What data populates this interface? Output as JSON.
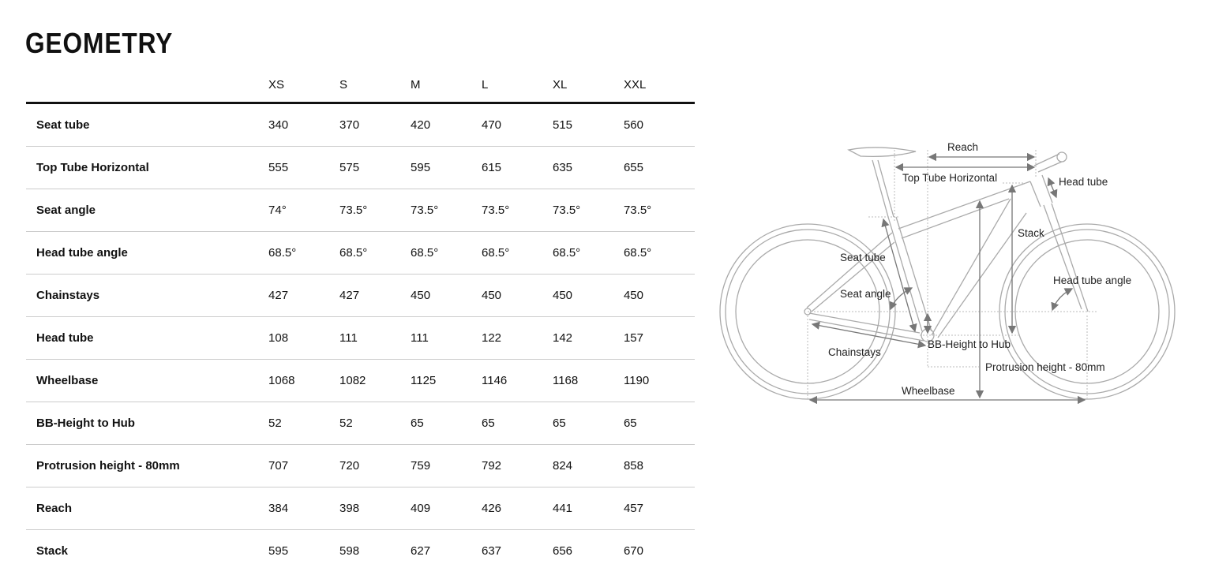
{
  "title": "GEOMETRY",
  "sizes": [
    "XS",
    "S",
    "M",
    "L",
    "XL",
    "XXL"
  ],
  "rows": [
    {
      "label": "Seat tube",
      "values": [
        "340",
        "370",
        "420",
        "470",
        "515",
        "560"
      ]
    },
    {
      "label": "Top Tube Horizontal",
      "values": [
        "555",
        "575",
        "595",
        "615",
        "635",
        "655"
      ]
    },
    {
      "label": "Seat angle",
      "values": [
        "74°",
        "73.5°",
        "73.5°",
        "73.5°",
        "73.5°",
        "73.5°"
      ]
    },
    {
      "label": "Head tube angle",
      "values": [
        "68.5°",
        "68.5°",
        "68.5°",
        "68.5°",
        "68.5°",
        "68.5°"
      ]
    },
    {
      "label": "Chainstays",
      "values": [
        "427",
        "427",
        "450",
        "450",
        "450",
        "450"
      ]
    },
    {
      "label": "Head tube",
      "values": [
        "108",
        "111",
        "111",
        "122",
        "142",
        "157"
      ]
    },
    {
      "label": "Wheelbase",
      "values": [
        "1068",
        "1082",
        "1125",
        "1146",
        "1168",
        "1190"
      ]
    },
    {
      "label": "BB-Height to Hub",
      "values": [
        "52",
        "52",
        "65",
        "65",
        "65",
        "65"
      ]
    },
    {
      "label": "Protrusion height - 80mm",
      "values": [
        "707",
        "720",
        "759",
        "792",
        "824",
        "858"
      ]
    },
    {
      "label": "Reach",
      "values": [
        "384",
        "398",
        "409",
        "426",
        "441",
        "457"
      ]
    },
    {
      "label": "Stack",
      "values": [
        "595",
        "598",
        "627",
        "637",
        "656",
        "670"
      ]
    }
  ],
  "diagram": {
    "reach": "Reach",
    "top_tube": "Top Tube Horizontal",
    "head_tube": "Head tube",
    "stack": "Stack",
    "seat_tube": "Seat tube",
    "head_tube_angle": "Head tube angle",
    "seat_angle": "Seat angle",
    "bb_height": "BB-Height to Hub",
    "chainstays": "Chainstays",
    "protrusion": "Protrusion height - 80mm",
    "wheelbase": "Wheelbase"
  }
}
